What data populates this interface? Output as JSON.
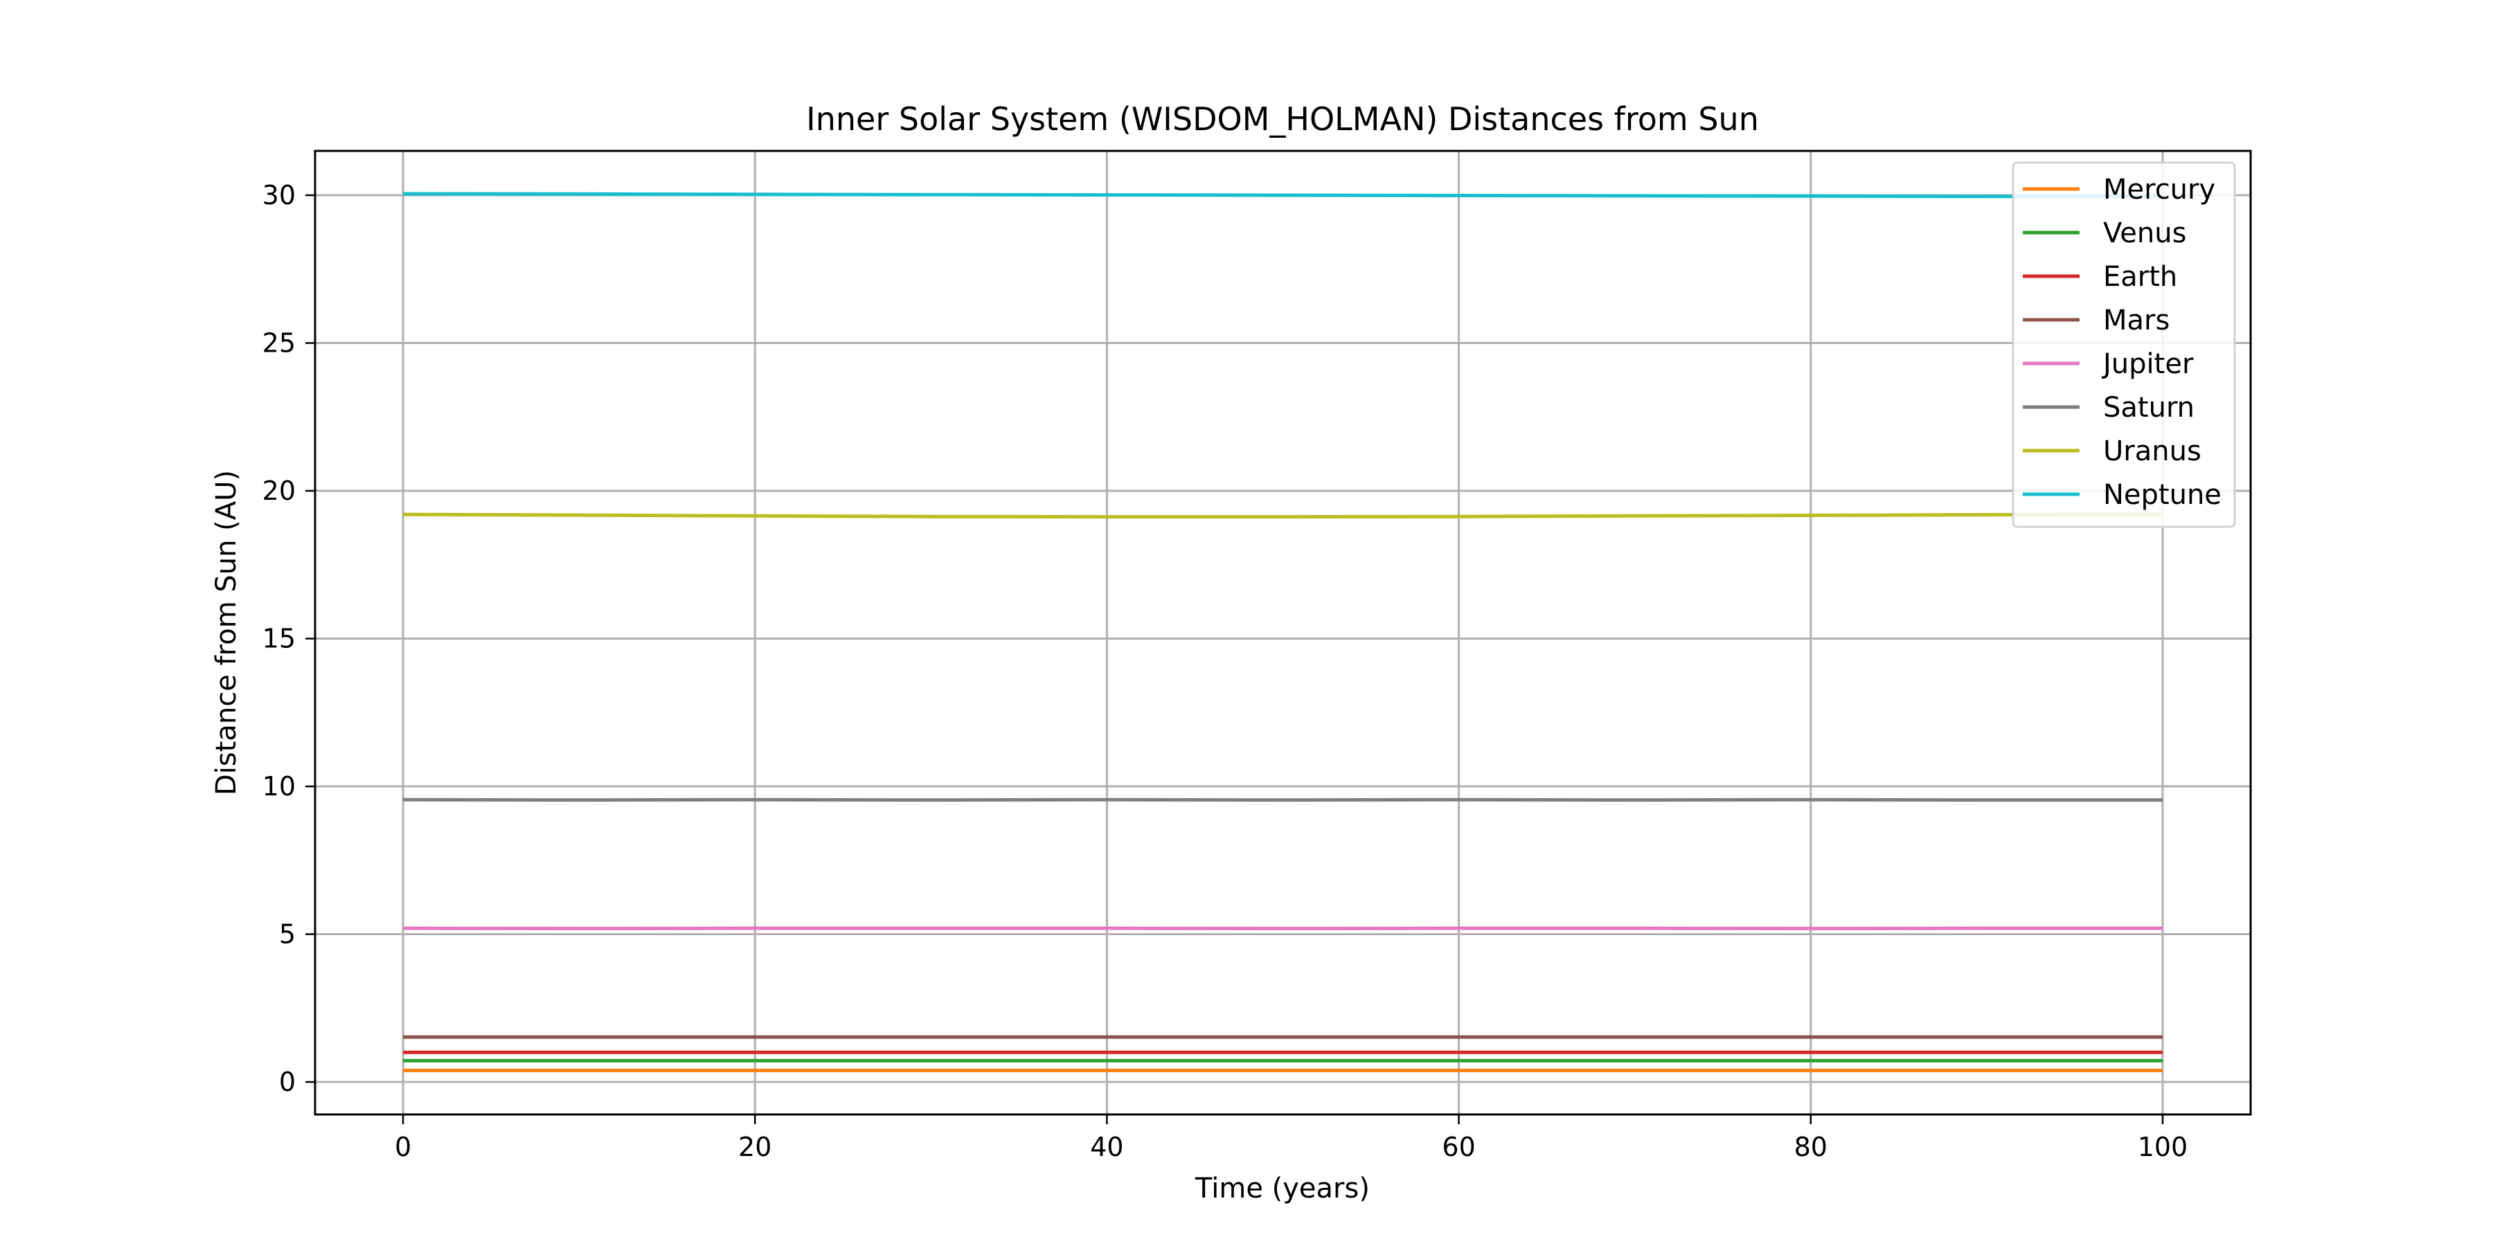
{
  "chart_data": {
    "type": "line",
    "title": "Inner Solar System (WISDOM_HOLMAN) Distances from Sun",
    "xlabel": "Time (years)",
    "ylabel": "Distance from Sun (AU)",
    "xlim": [
      -5,
      105
    ],
    "ylim": [
      -1.1,
      31.5
    ],
    "xticks": [
      0,
      20,
      40,
      60,
      80,
      100
    ],
    "yticks": [
      0,
      5,
      10,
      15,
      20,
      25,
      30
    ],
    "grid": true,
    "legend_position": "top-right",
    "x": [
      0,
      10,
      20,
      30,
      40,
      50,
      60,
      70,
      80,
      90,
      100
    ],
    "series": [
      {
        "name": "Mercury",
        "color": "#ff7f0e",
        "values": [
          0.39,
          0.39,
          0.39,
          0.39,
          0.39,
          0.39,
          0.39,
          0.39,
          0.39,
          0.39,
          0.39
        ]
      },
      {
        "name": "Venus",
        "color": "#2ca02c",
        "values": [
          0.72,
          0.72,
          0.72,
          0.72,
          0.72,
          0.72,
          0.72,
          0.72,
          0.72,
          0.72,
          0.72
        ]
      },
      {
        "name": "Earth",
        "color": "#d62728",
        "values": [
          1.0,
          1.0,
          1.0,
          1.0,
          1.0,
          1.0,
          1.0,
          1.0,
          1.0,
          1.0,
          1.0
        ]
      },
      {
        "name": "Mars",
        "color": "#8c564b",
        "values": [
          1.52,
          1.52,
          1.52,
          1.52,
          1.52,
          1.52,
          1.52,
          1.52,
          1.52,
          1.52,
          1.52
        ]
      },
      {
        "name": "Jupiter",
        "color": "#e377c2",
        "values": [
          5.2,
          5.19,
          5.2,
          5.2,
          5.2,
          5.19,
          5.2,
          5.2,
          5.19,
          5.2,
          5.2
        ]
      },
      {
        "name": "Saturn",
        "color": "#7f7f7f",
        "values": [
          9.55,
          9.54,
          9.55,
          9.54,
          9.55,
          9.54,
          9.55,
          9.54,
          9.55,
          9.54,
          9.54
        ]
      },
      {
        "name": "Uranus",
        "color": "#bcbd22",
        "values": [
          19.2,
          19.18,
          19.15,
          19.13,
          19.12,
          19.12,
          19.13,
          19.15,
          19.17,
          19.19,
          19.2
        ]
      },
      {
        "name": "Neptune",
        "color": "#17becf",
        "values": [
          30.05,
          30.04,
          30.03,
          30.02,
          30.01,
          30.0,
          29.99,
          29.98,
          29.97,
          29.96,
          29.96
        ]
      }
    ]
  }
}
